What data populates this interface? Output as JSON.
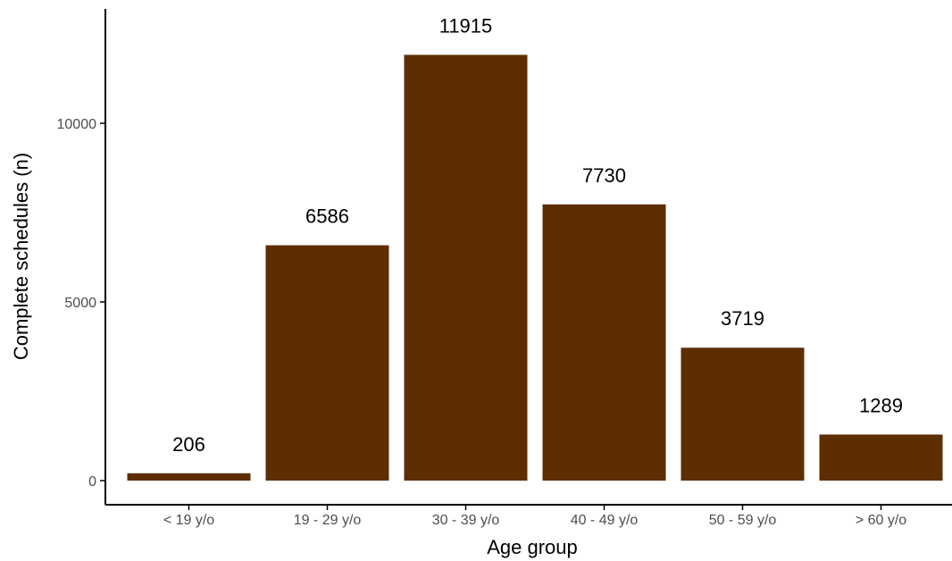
{
  "chart_data": {
    "type": "bar",
    "categories": [
      "< 19 y/o",
      "19 - 29 y/o",
      "30 - 39 y/o",
      "40 - 49 y/o",
      "50 - 59 y/o",
      "> 60  y/o"
    ],
    "values": [
      206,
      6586,
      11915,
      7730,
      3719,
      1289
    ],
    "data_labels": [
      "206",
      "6586",
      "11915",
      "7730",
      "3719",
      "1289"
    ],
    "xlabel": "Age group",
    "ylabel": "Complete schedules (n)",
    "yticks": [
      0,
      5000,
      10000
    ],
    "ytick_labels": [
      "0",
      "5000",
      "10000"
    ],
    "ylim": [
      0,
      13200
    ],
    "bar_color": "#5c2e02",
    "grid": false,
    "legend": "none"
  }
}
